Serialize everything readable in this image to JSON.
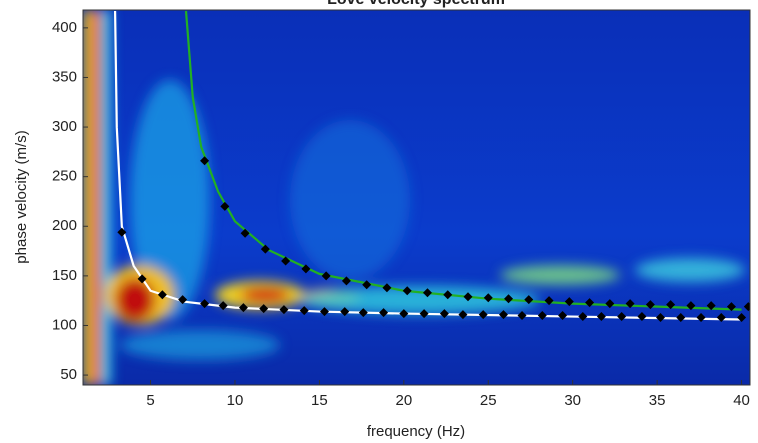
{
  "chart_data": {
    "type": "scatter",
    "title": "Love velocity spectrum",
    "x_label": "frequency (Hz)",
    "y_label": "phase velocity (m/s)",
    "xlim": [
      1,
      40.5
    ],
    "ylim": [
      40,
      418
    ],
    "xticks": [
      5,
      10,
      15,
      20,
      25,
      30,
      35,
      40
    ],
    "yticks": [
      50,
      100,
      150,
      200,
      250,
      300,
      350,
      400
    ],
    "series": [
      {
        "mode": "line",
        "color": "#ffffff",
        "x": [
          2.9,
          3,
          3.3,
          4,
          5,
          7,
          10,
          15,
          20,
          30,
          40
        ],
        "values": [
          417,
          300,
          200,
          160,
          135,
          124,
          118,
          114,
          112,
          109,
          106
        ]
      },
      {
        "mode": "line",
        "color": "#22b022",
        "x": [
          7.1,
          7.5,
          8,
          9,
          10,
          12,
          15,
          20,
          25,
          30,
          40
        ],
        "values": [
          417,
          330,
          280,
          235,
          205,
          176,
          152,
          135,
          127,
          122,
          116
        ]
      },
      {
        "mode": "markers",
        "color": "#000000",
        "x": [
          3.3,
          4.5,
          5.7,
          6.9,
          8.2,
          9.3,
          10.5,
          11.7,
          12.9,
          14.1,
          15.3,
          16.5,
          17.6,
          18.8,
          20,
          21.2,
          22.4,
          23.5,
          24.7,
          25.9,
          27,
          28.2,
          29.4,
          30.6,
          31.7,
          32.9,
          34.1,
          35.2,
          36.4,
          37.6,
          38.8,
          40
        ],
        "values": [
          194,
          147,
          131,
          126,
          122,
          120,
          118,
          117,
          116,
          115,
          114,
          114,
          113,
          113,
          112,
          112,
          112,
          111,
          111,
          111,
          110,
          110,
          110,
          109,
          109,
          109,
          109,
          108,
          108,
          108,
          108,
          108
        ]
      },
      {
        "mode": "markers",
        "color": "#000000",
        "x": [
          8.2,
          9.4,
          10.6,
          11.8,
          13,
          14.2,
          15.4,
          16.6,
          17.8,
          19,
          20.2,
          21.4,
          22.6,
          23.8,
          25,
          26.2,
          27.4,
          28.6,
          29.8,
          31,
          32.2,
          33.4,
          34.6,
          35.8,
          37,
          38.2,
          39.4,
          40.4
        ],
        "values": [
          266,
          220,
          193,
          177,
          165,
          157,
          150,
          145,
          141,
          138,
          135,
          133,
          131,
          129,
          128,
          127,
          126,
          125,
          124,
          123,
          122,
          122,
          121,
          121,
          120,
          120,
          119,
          119
        ]
      }
    ]
  }
}
